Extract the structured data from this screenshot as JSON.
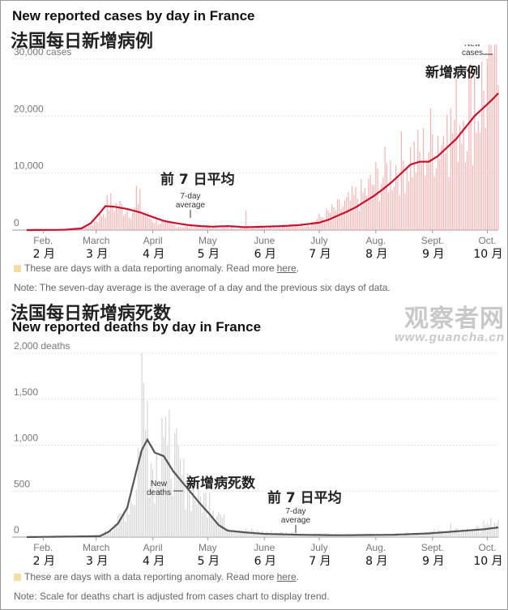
{
  "colors": {
    "case_bar": "#f4b3b3",
    "case_line": "#c8102e",
    "death_bar": "#d4d4d4",
    "death_line": "#555555",
    "anomaly": "#f6dda3"
  },
  "cases": {
    "title_en": "New reported cases by day in France",
    "title_cn": "法国每日新增病例",
    "anomaly_text": "These are days with a data reporting anomaly. Read more",
    "anomaly_link": "here",
    "note": "Note: The seven-day average is the average of a day and the previous six days of data.",
    "labels": {
      "avg_cn": "前 7 日平均",
      "avg_en_1": "7-day",
      "avg_en_2": "average",
      "new_cn": "新增病例",
      "new_en_1": "New",
      "new_en_2": "cases"
    }
  },
  "deaths": {
    "title_cn": "法国每日新增病死数",
    "title_en": "New reported deaths by day in France",
    "anomaly_text": "These are days with a data reporting anomaly. Read more",
    "anomaly_link": "here",
    "note": "Note: Scale for deaths chart is adjusted from cases chart to display trend.",
    "labels": {
      "avg_cn": "前 7 日平均",
      "avg_en_1": "7-day",
      "avg_en_2": "average",
      "new_cn": "新增病死数",
      "new_en_1": "New",
      "new_en_2": "deaths"
    }
  },
  "watermark": {
    "line1": "观察者网",
    "line2": "www.guancha.cn"
  },
  "chart_data": [
    {
      "type": "bar",
      "title": "New reported cases by day in France",
      "xlabel": "",
      "ylabel": "cases",
      "ylim": [
        0,
        30000
      ],
      "y_ticks": [
        0,
        10000,
        20000,
        30000
      ],
      "y_tick_labels": [
        "0",
        "10,000",
        "20,000",
        "30,000 cases"
      ],
      "months_en": [
        "Feb.",
        "March",
        "April",
        "May",
        "June",
        "July",
        "Aug.",
        "Sept.",
        "Oct."
      ],
      "months_cn": [
        "2 月",
        "3 月",
        "4 月",
        "5 月",
        "6 月",
        "7 月",
        "8 月",
        "9 月",
        "10 月"
      ],
      "series": [
        {
          "name": "New cases (daily)",
          "x": [
            0,
            25,
            35,
            40,
            45,
            50,
            55,
            60,
            65,
            70,
            75,
            80,
            85,
            95,
            105,
            120,
            135,
            145,
            155,
            160,
            165,
            170,
            175,
            180,
            185,
            190,
            195,
            200,
            205,
            210,
            215,
            220,
            225,
            230,
            235,
            240,
            245,
            250,
            255,
            258
          ],
          "values": [
            0,
            60,
            1000,
            2600,
            5300,
            4600,
            4300,
            3600,
            2800,
            1900,
            1300,
            1000,
            700,
            600,
            500,
            500,
            700,
            900,
            1200,
            2300,
            3200,
            4100,
            5000,
            6300,
            7100,
            9300,
            10700,
            11800,
            13200,
            14000,
            13900,
            16600,
            18700,
            17900,
            21100,
            24700,
            23600,
            27400,
            26700,
            31000
          ]
        },
        {
          "name": "7-day average",
          "x": [
            0,
            20,
            30,
            35,
            40,
            43,
            48,
            55,
            62,
            68,
            75,
            82,
            88,
            95,
            102,
            110,
            120,
            130,
            140,
            150,
            160,
            165,
            170,
            175,
            180,
            185,
            190,
            195,
            200,
            205,
            210,
            215,
            220,
            225,
            230,
            235,
            240,
            245,
            250,
            255,
            258
          ],
          "values": [
            0,
            40,
            300,
            1200,
            3000,
            4200,
            4100,
            3700,
            3100,
            2400,
            1600,
            1200,
            900,
            700,
            600,
            700,
            500,
            600,
            700,
            900,
            1300,
            1800,
            2500,
            3200,
            4000,
            5000,
            6000,
            7200,
            8500,
            10000,
            11500,
            12000,
            12000,
            13000,
            14500,
            16000,
            18000,
            20000,
            21500,
            23000,
            24000
          ]
        }
      ]
    },
    {
      "type": "bar",
      "title": "New reported deaths by day in France",
      "xlabel": "",
      "ylabel": "deaths",
      "ylim": [
        0,
        2000
      ],
      "y_ticks": [
        0,
        500,
        1000,
        1500,
        2000
      ],
      "y_tick_labels": [
        "0",
        "500",
        "1,000",
        "1,500",
        "2,000 deaths"
      ],
      "months_en": [
        "Feb.",
        "March",
        "April",
        "May",
        "June",
        "July",
        "Aug.",
        "Sept.",
        "Oct."
      ],
      "months_cn": [
        "2 月",
        "3 月",
        "4 月",
        "5 月",
        "6 月",
        "7 月",
        "8 月",
        "9 月",
        "10 月"
      ],
      "series": [
        {
          "name": "New deaths (daily)",
          "x": [
            0,
            40,
            45,
            50,
            55,
            60,
            63,
            66,
            70,
            75,
            80,
            85,
            90,
            95,
            100,
            105,
            110,
            120,
            130,
            150,
            170,
            200,
            220,
            240,
            250,
            258
          ],
          "values": [
            0,
            20,
            80,
            180,
            380,
            560,
            1900,
            1000,
            800,
            1300,
            1000,
            700,
            560,
            450,
            450,
            300,
            120,
            80,
            60,
            40,
            30,
            30,
            60,
            80,
            100,
            160
          ]
        },
        {
          "name": "7-day average",
          "x": [
            0,
            40,
            45,
            50,
            55,
            60,
            63,
            66,
            70,
            75,
            80,
            85,
            90,
            95,
            100,
            105,
            110,
            120,
            130,
            150,
            170,
            200,
            220,
            240,
            250,
            258
          ],
          "values": [
            0,
            10,
            60,
            150,
            320,
            720,
            950,
            1060,
            920,
            880,
            720,
            600,
            480,
            360,
            250,
            130,
            70,
            50,
            35,
            25,
            20,
            25,
            40,
            70,
            85,
            105
          ]
        }
      ]
    }
  ]
}
